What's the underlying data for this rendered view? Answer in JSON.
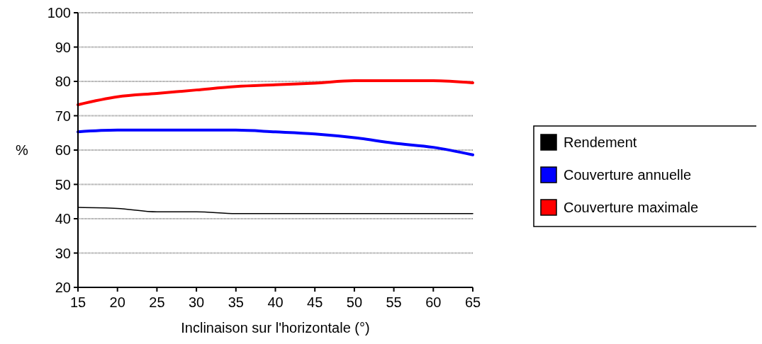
{
  "chart_data": {
    "type": "line",
    "xlabel": "Inclinaison sur l'horizontale (°)",
    "ylabel": "%",
    "x": [
      15,
      20,
      25,
      30,
      35,
      40,
      45,
      50,
      55,
      60,
      65
    ],
    "xlim": [
      15,
      65
    ],
    "xticks": [
      15,
      20,
      25,
      30,
      35,
      40,
      45,
      50,
      55,
      60,
      65
    ],
    "ylim": [
      20,
      100
    ],
    "yticks": [
      20,
      30,
      40,
      50,
      60,
      70,
      80,
      90,
      100
    ],
    "grid": "y",
    "legend": "right",
    "marker": "none",
    "line_style": "solid",
    "series": [
      {
        "name": "Rendement",
        "color": "#000000",
        "values": [
          43.3,
          43,
          42,
          42,
          41.5,
          41.5,
          41.5,
          41.5,
          41.5,
          41.5,
          41.5
        ]
      },
      {
        "name": "Couverture annuelle",
        "color": "#0000ff",
        "values": [
          65.3,
          65.8,
          65.8,
          65.8,
          65.8,
          65.3,
          64.7,
          63.6,
          62,
          60.8,
          58.6
        ]
      },
      {
        "name": "Couverture maximale",
        "color": "#ff0000",
        "values": [
          73.2,
          75.5,
          76.5,
          77.5,
          78.5,
          79,
          79.5,
          80.2,
          80.2,
          80.2,
          79.6
        ]
      }
    ]
  }
}
